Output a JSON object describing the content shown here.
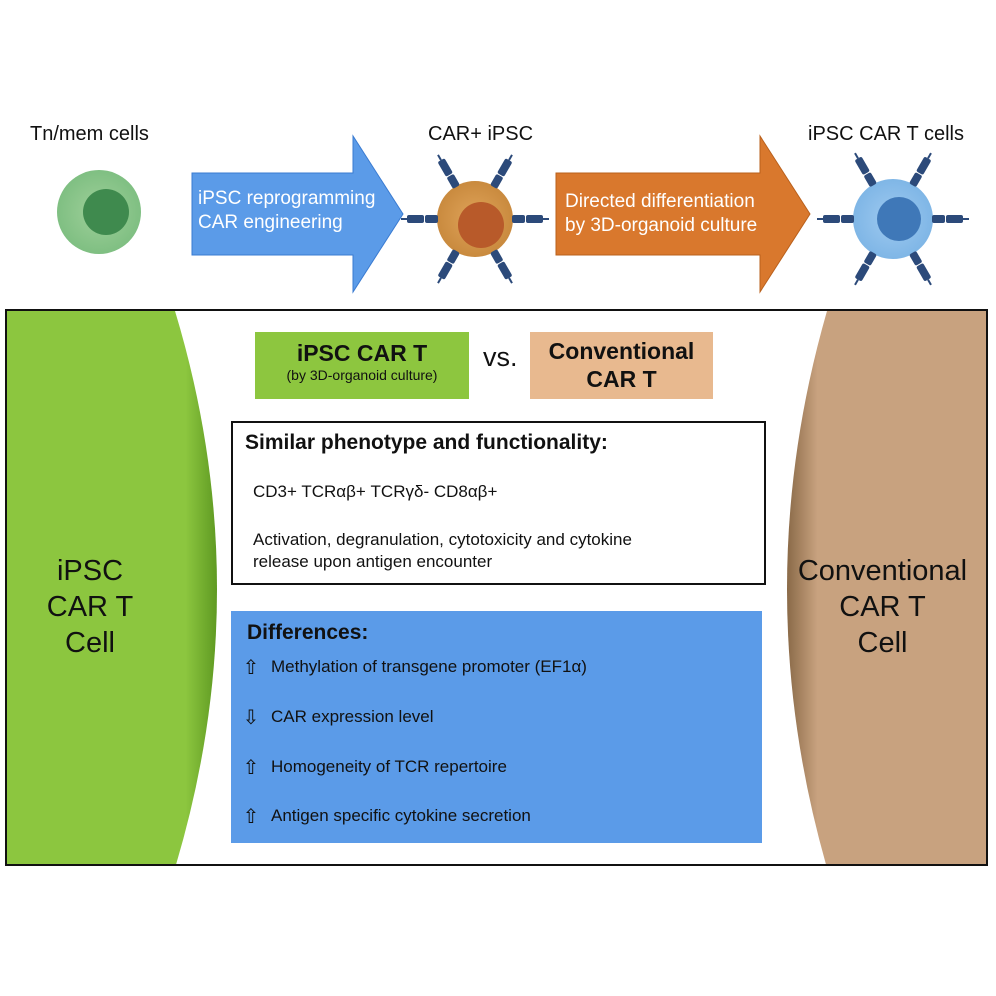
{
  "stages": {
    "tn_label": "Tn/mem cells",
    "ipsc_label": "CAR+ iPSC",
    "cart_label": "iPSC CAR T cells"
  },
  "arrows": {
    "reprogramming": [
      "iPSC reprogramming",
      "CAR engineering"
    ],
    "differentiation": [
      "Directed differentiation",
      "by 3D-organoid culture"
    ]
  },
  "comparison": {
    "left_title": "iPSC CAR T",
    "left_subtitle": "(by 3D-organoid culture)",
    "vs": "vs.",
    "right_title_line1": "Conventional",
    "right_title_line2": "CAR T"
  },
  "side_labels": {
    "left": [
      "iPSC",
      "CAR T",
      "Cell"
    ],
    "right": [
      "Conventional",
      "CAR T",
      "Cell"
    ]
  },
  "similar": {
    "title": "Similar phenotype and functionality:",
    "markers": "CD3+ TCRαβ+ TCRγδ- CD8αβ+",
    "function_line1": "Activation, degranulation, cytotoxicity and cytokine",
    "function_line2": "release upon antigen encounter"
  },
  "differences": {
    "title": "Differences:",
    "items": [
      {
        "direction": "up",
        "arrow": "⇧",
        "text": "Methylation of transgene promoter (EF1α)"
      },
      {
        "direction": "down",
        "arrow": "⇩",
        "text": "CAR expression level"
      },
      {
        "direction": "up",
        "arrow": "⇧",
        "text": "Homogeneity of TCR repertoire"
      },
      {
        "direction": "up",
        "arrow": "⇧",
        "text": "Antigen specific cytokine secretion"
      }
    ]
  },
  "colors": {
    "green": "#8cc63f",
    "tan": "#c8a27f",
    "blue": "#5b9be8",
    "orange": "#d9782d",
    "legend_green": "#8dc63f",
    "legend_tan": "#e8b98f"
  }
}
